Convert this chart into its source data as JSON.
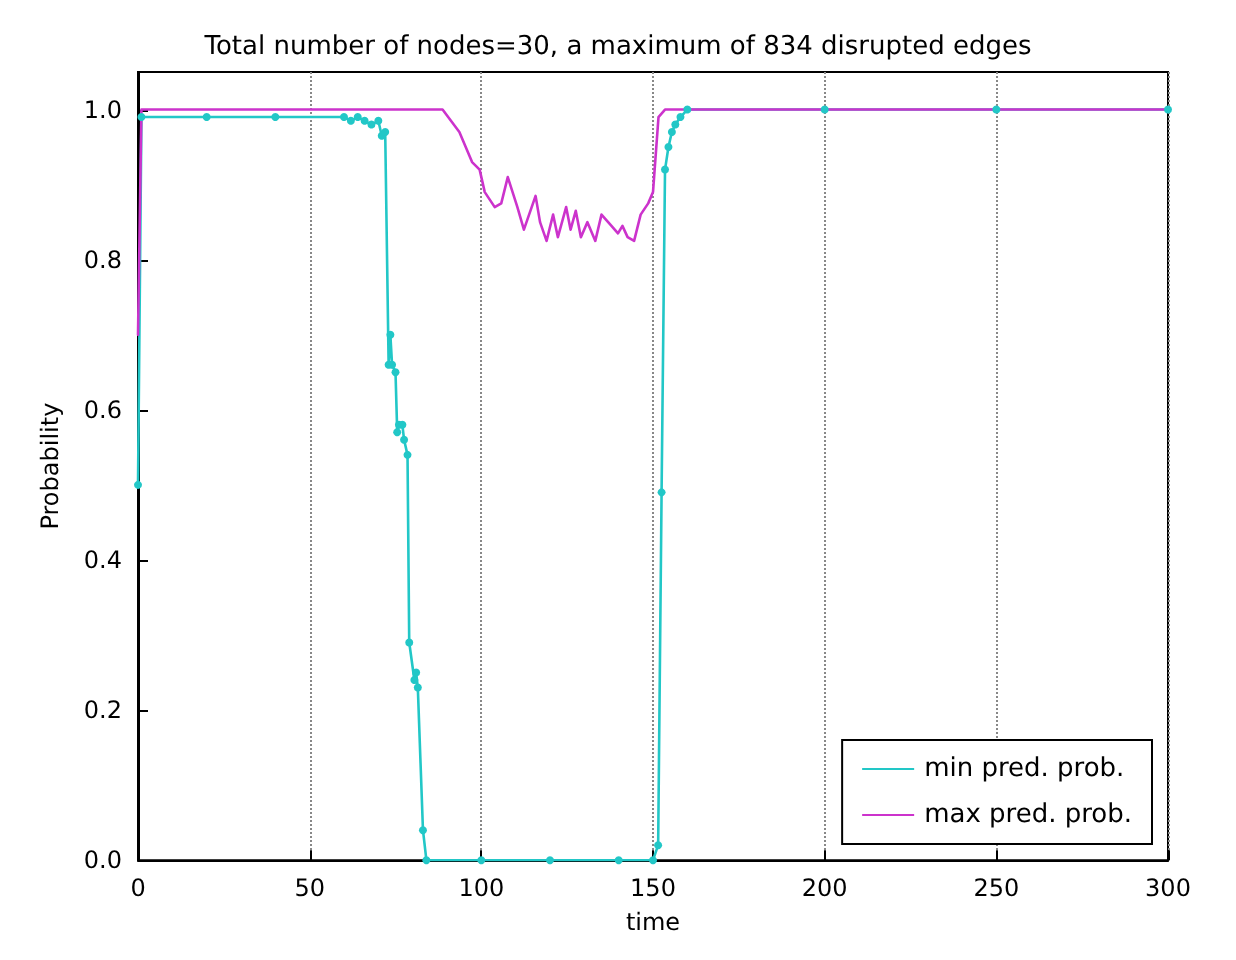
{
  "chart_data": {
    "type": "line",
    "title": "Total number of nodes=30, a maximum of 834 disrupted edges",
    "xlabel": "time",
    "ylabel": "Probability",
    "xlim": [
      0,
      300
    ],
    "xticks": [
      0,
      50,
      100,
      150,
      200,
      250,
      300
    ],
    "ylim": [
      0,
      1.05
    ],
    "yticks": [
      {
        "value": 0,
        "label": "0.0"
      },
      {
        "value": 0.2,
        "label": "0.2"
      },
      {
        "value": 0.4,
        "label": "0.4"
      },
      {
        "value": 0.6,
        "label": "0.6"
      },
      {
        "value": 0.8,
        "label": "0.8"
      },
      {
        "value": 1,
        "label": "1.0"
      }
    ],
    "grid": "x",
    "legend": "bottom right",
    "series": [
      {
        "name": "min pred. prob.",
        "color": "#22c7c7",
        "marker": "circle",
        "x": [
          0,
          1,
          20,
          40,
          60,
          62,
          64,
          66,
          68,
          70,
          71,
          72,
          73,
          73.5,
          74,
          75,
          75.5,
          76,
          77,
          77.5,
          78.5,
          79,
          80.5,
          81,
          81.5,
          83,
          84,
          100,
          120,
          140,
          150,
          151.5,
          152.5,
          153.5,
          154.5,
          155.5,
          156.5,
          158,
          160,
          200,
          250,
          300
        ],
        "values": [
          0.5,
          0.99,
          0.99,
          0.99,
          0.99,
          0.985,
          0.99,
          0.985,
          0.98,
          0.985,
          0.965,
          0.97,
          0.66,
          0.7,
          0.66,
          0.65,
          0.57,
          0.58,
          0.58,
          0.56,
          0.54,
          0.29,
          0.24,
          0.25,
          0.23,
          0.04,
          0,
          0,
          0,
          0,
          0,
          0.02,
          0.49,
          0.92,
          0.95,
          0.97,
          0.98,
          0.99,
          1,
          1,
          1,
          1
        ]
      },
      {
        "name": "max pred. prob.",
        "color": "#cc33cc",
        "marker": "none",
        "x": [
          0,
          1,
          50,
          88.7,
          93.6,
          97.3,
          99.5,
          101,
          103.9,
          105.8,
          107.7,
          110.5,
          112.4,
          115.8,
          117.1,
          119,
          120.9,
          122.3,
          124.7,
          126,
          127.5,
          129,
          130.9,
          133.2,
          135,
          137.9,
          139.8,
          141.1,
          142.6,
          144.5,
          146.4,
          148.6,
          150,
          151.6,
          153.5,
          200,
          250,
          300
        ],
        "values": [
          0.7,
          1,
          1,
          1,
          0.97,
          0.93,
          0.92,
          0.89,
          0.87,
          0.875,
          0.91,
          0.87,
          0.84,
          0.885,
          0.85,
          0.825,
          0.86,
          0.83,
          0.87,
          0.84,
          0.865,
          0.83,
          0.85,
          0.825,
          0.86,
          0.845,
          0.835,
          0.845,
          0.83,
          0.825,
          0.86,
          0.875,
          0.89,
          0.99,
          1,
          1,
          1,
          1
        ]
      }
    ]
  }
}
